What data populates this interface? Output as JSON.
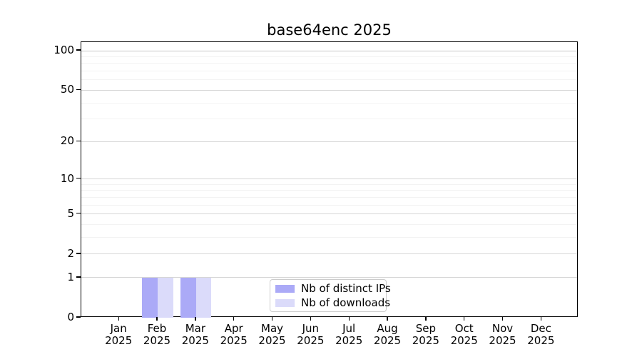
{
  "chart_data": {
    "type": "bar",
    "title": "base64enc 2025",
    "categories": [
      "Jan",
      "Feb",
      "Mar",
      "Apr",
      "May",
      "Jun",
      "Jul",
      "Aug",
      "Sep",
      "Oct",
      "Nov",
      "Dec"
    ],
    "category_year": "2025",
    "series": [
      {
        "name": "Nb of distinct IPs",
        "color": "#abaaf7",
        "values": [
          0,
          1,
          1,
          0,
          0,
          0,
          0,
          0,
          0,
          0,
          0,
          0
        ]
      },
      {
        "name": "Nb of downloads",
        "color": "#dbdbfa",
        "values": [
          0,
          1,
          1,
          0,
          0,
          0,
          0,
          0,
          0,
          0,
          0,
          0
        ]
      }
    ],
    "yscale": "log1p",
    "ylim": [
      0,
      100
    ],
    "yticks": [
      100,
      50,
      20,
      10,
      5,
      2,
      1,
      0
    ],
    "grid": "horizontal-only",
    "grid_minor_values": [
      2,
      3,
      4,
      5,
      6,
      7,
      8,
      9,
      10,
      20,
      30,
      40,
      50,
      60,
      70,
      80,
      90,
      100
    ],
    "legend": {
      "position": "bottom-center",
      "entries": [
        "Nb of distinct IPs",
        "Nb of downloads"
      ]
    },
    "colors": {
      "distinct_ips": "#abaaf7",
      "downloads": "#dbdbfa",
      "grid_major": "#d6d6d6",
      "grid_minor": "#f3f3f3",
      "grid_top": "#c9c9c9",
      "spine": "#000000"
    }
  }
}
